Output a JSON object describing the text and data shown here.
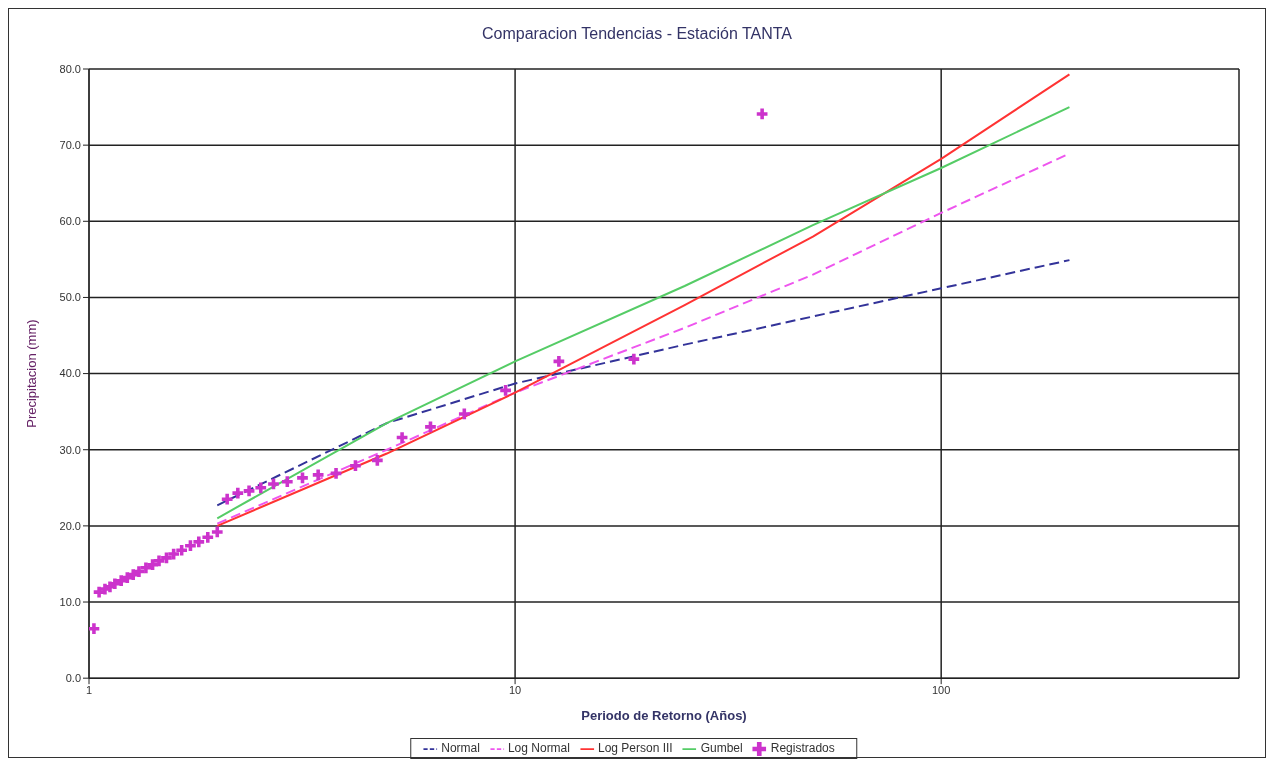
{
  "chart_data": {
    "type": "line",
    "title": "Comparacion Tendencias  - Estación TANTA",
    "xlabel": "Periodo de Retorno (Años)",
    "ylabel": "Precipitacion (mm)",
    "log": "x",
    "grid": true,
    "legend": "bottom",
    "xlim": [
      1,
      500
    ],
    "xticks": [
      1,
      10,
      100
    ],
    "ylim": [
      0,
      80
    ],
    "yticks": [
      {
        "value": 0,
        "label": "0.0"
      },
      {
        "value": 10,
        "label": "10.0"
      },
      {
        "value": 20,
        "label": "20.0"
      },
      {
        "value": 30,
        "label": "30.0"
      },
      {
        "value": 40,
        "label": "40.0"
      },
      {
        "value": 50,
        "label": "50.0"
      },
      {
        "value": 60,
        "label": "60.0"
      },
      {
        "value": 70,
        "label": "70.0"
      },
      {
        "value": 80,
        "label": "80.0"
      }
    ],
    "series": [
      {
        "name": "Normal",
        "color": "#333399",
        "line_style": "dashed",
        "marker": "none",
        "x": [
          2,
          5,
          10,
          25,
          50,
          100,
          200
        ],
        "values": [
          22.7,
          33.5,
          38.7,
          43.8,
          47.5,
          51.2,
          54.9
        ]
      },
      {
        "name": "Log Normal",
        "color": "#ee55ee",
        "line_style": "dashed",
        "marker": "none",
        "x": [
          2,
          5,
          10,
          25,
          50,
          100,
          200
        ],
        "values": [
          20.3,
          30,
          37.5,
          46,
          53,
          61.1,
          68.9
        ]
      },
      {
        "name": "Log Person III",
        "color": "#ff3333",
        "line_style": "solid",
        "marker": "none",
        "x": [
          2,
          5,
          10,
          25,
          50,
          100,
          200
        ],
        "values": [
          20,
          29.5,
          37.5,
          49,
          58,
          68.2,
          79.3
        ]
      },
      {
        "name": "Gumbel",
        "color": "#55cc66",
        "line_style": "solid",
        "marker": "none",
        "x": [
          2,
          5,
          10,
          25,
          50,
          100,
          200
        ],
        "values": [
          21,
          33.5,
          41.6,
          51.5,
          59.5,
          67,
          75
        ]
      },
      {
        "name": "Registrados",
        "type": "scatter",
        "color": "#cc33cc",
        "marker": "cross",
        "x": [
          38,
          19,
          12.67,
          9.5,
          7.6,
          6.33,
          5.43,
          4.75,
          4.22,
          3.8,
          3.45,
          3.17,
          2.92,
          2.71,
          2.53,
          2.375,
          2.235,
          2.11,
          2,
          1.9,
          1.81,
          1.73,
          1.65,
          1.58,
          1.52,
          1.46,
          1.41,
          1.36,
          1.31,
          1.27,
          1.23,
          1.19,
          1.15,
          1.12,
          1.09,
          1.056,
          1.027
        ],
        "values": [
          74.1,
          41.9,
          41.6,
          37.8,
          34.7,
          33,
          31.6,
          28.6,
          27.9,
          26.9,
          26.7,
          26.3,
          25.8,
          25.5,
          25,
          24.6,
          24.3,
          23.5,
          19.2,
          18.5,
          17.9,
          17.4,
          16.8,
          16.3,
          15.8,
          15.4,
          14.9,
          14.5,
          14,
          13.6,
          13.2,
          12.8,
          12.4,
          12,
          11.7,
          11.3,
          6.5
        ]
      }
    ]
  }
}
